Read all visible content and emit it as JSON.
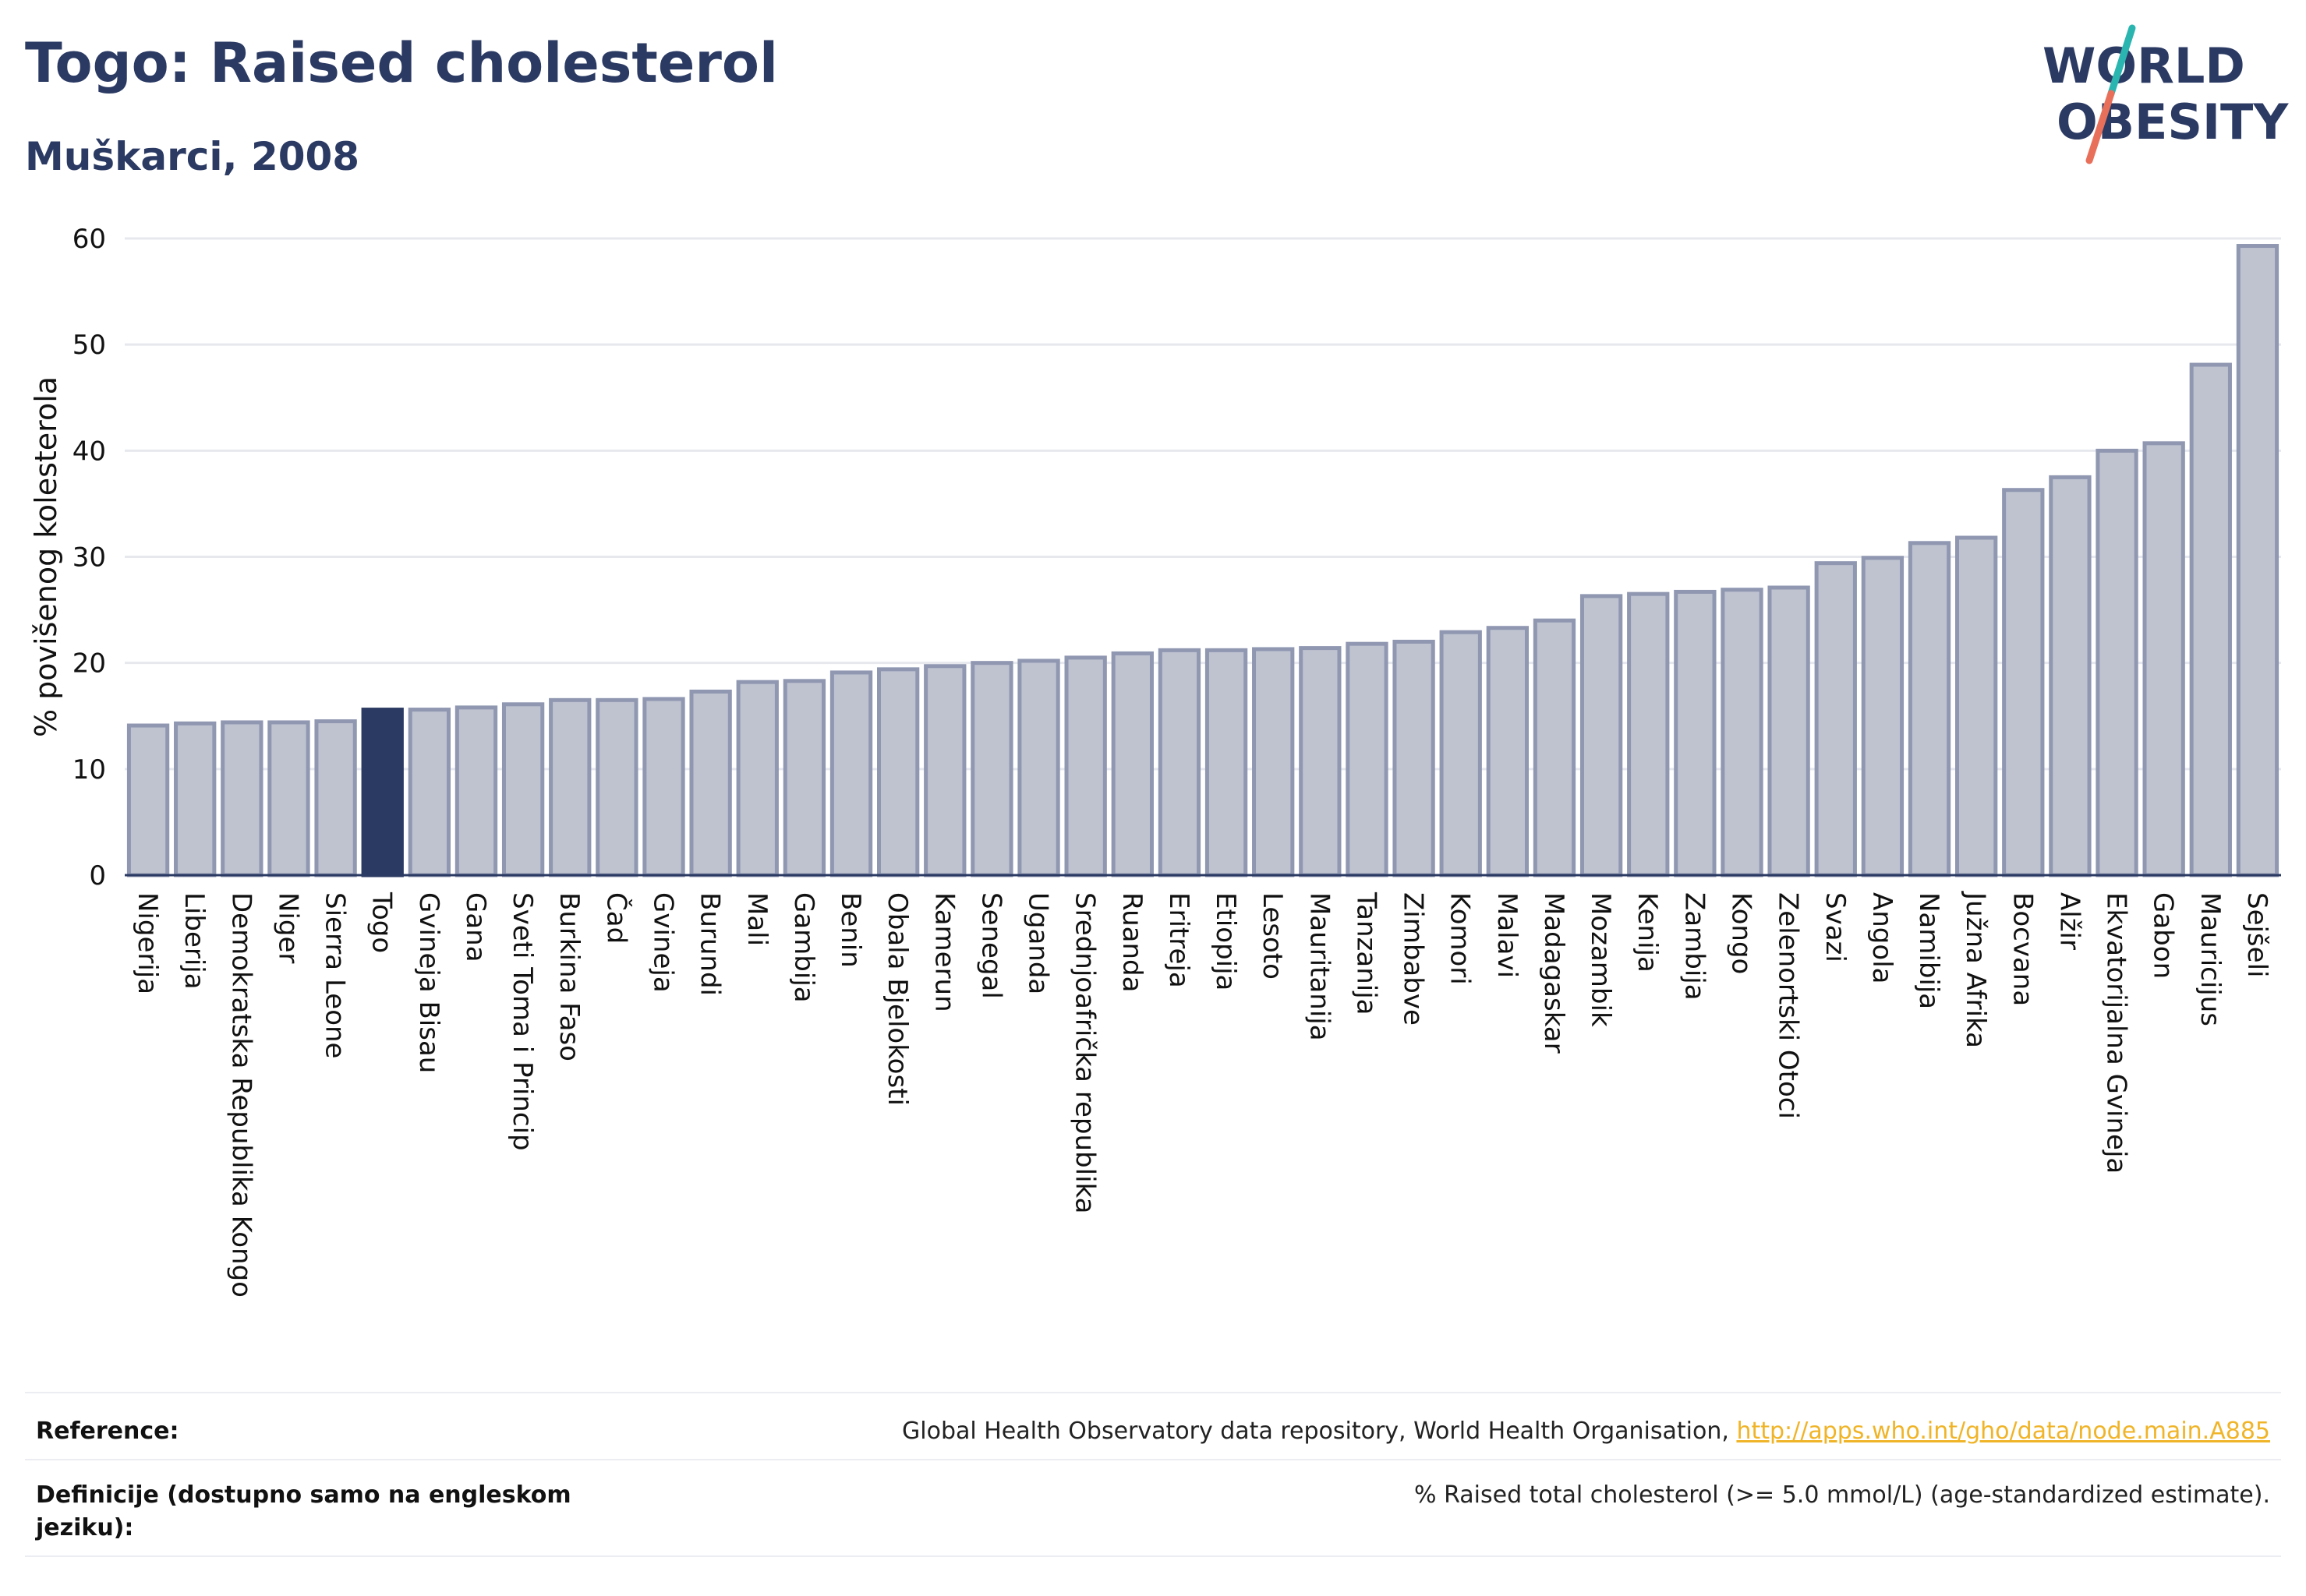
{
  "title": "Togo: Raised cholesterol",
  "subtitle": "Muškarci, 2008",
  "logo": {
    "text_line1": "WORLD",
    "text_line2": "OBESITY",
    "accent_colors": [
      "#2bb5b0",
      "#e8705b"
    ],
    "text_color": "#2b3a63"
  },
  "colors": {
    "bar": "#bfc3d0",
    "bar_border": "#8f97b1",
    "highlight": "#2b3a63",
    "grid": "#e6e8ee",
    "text": "#2b3a63"
  },
  "chart_data": {
    "type": "bar",
    "title": "Togo: Raised cholesterol",
    "subtitle": "Muškarci, 2008",
    "xlabel": "",
    "ylabel": "% povišenog kolesterola",
    "ylim": [
      0,
      60
    ],
    "yticks": [
      0,
      10,
      20,
      30,
      40,
      50,
      60
    ],
    "grid": true,
    "highlight": "Togo",
    "categories": [
      "Nigerija",
      "Liberija",
      "Demokratska Republika Kongo",
      "Niger",
      "Sierra Leone",
      "Togo",
      "Gvineja Bisau",
      "Gana",
      "Sveti Toma i Princip",
      "Burkina Faso",
      "Čad",
      "Gvineja",
      "Burundi",
      "Mali",
      "Gambija",
      "Benin",
      "Obala Bjelokosti",
      "Kamerun",
      "Senegal",
      "Uganda",
      "Srednjoafrička republika",
      "Ruanda",
      "Eritreja",
      "Etiopija",
      "Lesoto",
      "Mauritanija",
      "Tanzanija",
      "Zimbabve",
      "Komori",
      "Malavi",
      "Madagaskar",
      "Mozambik",
      "Kenija",
      "Zambija",
      "Kongo",
      "Zelenortski Otoci",
      "Svazi",
      "Angola",
      "Namibija",
      "Južna Afrika",
      "Bocvana",
      "Alžir",
      "Ekvatorijalna Gvineja",
      "Gabon",
      "Mauricijus",
      "Sejšeli"
    ],
    "values": [
      14.1,
      14.3,
      14.4,
      14.4,
      14.5,
      15.6,
      15.6,
      15.8,
      16.1,
      16.5,
      16.5,
      16.6,
      17.3,
      18.2,
      18.3,
      19.1,
      19.4,
      19.7,
      20.0,
      20.2,
      20.5,
      20.9,
      21.2,
      21.2,
      21.3,
      21.4,
      21.8,
      22.0,
      22.9,
      23.3,
      24.0,
      26.3,
      26.5,
      26.7,
      26.9,
      27.1,
      29.4,
      29.9,
      31.3,
      31.8,
      36.3,
      37.5,
      40.0,
      40.7,
      48.1,
      59.3
    ]
  },
  "footer": {
    "reference_label": "Reference:",
    "reference_text": "Global Health Observatory data repository, World Health Organisation, ",
    "reference_link": "http://apps.who.int/gho/data/node.main.A885",
    "definition_label": "Definicije (dostupno samo na engleskom jeziku):",
    "definition_text": "% Raised total cholesterol (>= 5.0 mmol/L) (age-standardized estimate)."
  }
}
